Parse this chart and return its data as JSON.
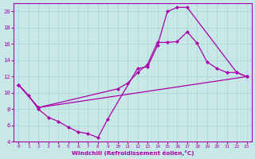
{
  "xlabel": "Windchill (Refroidissement éolien,°C)",
  "bg_color": "#c8e8e8",
  "grid_color": "#a8d4d4",
  "line_color": "#aa00aa",
  "xlim": [
    -0.5,
    23.5
  ],
  "ylim": [
    4,
    21
  ],
  "xticks": [
    0,
    1,
    2,
    3,
    4,
    5,
    6,
    7,
    8,
    9,
    10,
    11,
    12,
    13,
    14,
    15,
    16,
    17,
    18,
    19,
    20,
    21,
    22,
    23
  ],
  "yticks": [
    4,
    6,
    8,
    10,
    12,
    14,
    16,
    18,
    20
  ],
  "line1_x": [
    0,
    1,
    2,
    3,
    4,
    5,
    6,
    7,
    8,
    9,
    12,
    13,
    14,
    15,
    16,
    17,
    22,
    23
  ],
  "line1_y": [
    11,
    9.7,
    8,
    7,
    6.5,
    5.8,
    5.2,
    5.0,
    4.5,
    6.8,
    13.0,
    13.2,
    15.8,
    20.0,
    20.5,
    20.5,
    12.5,
    12.0
  ],
  "line2_x": [
    0,
    2,
    23
  ],
  "line2_y": [
    11,
    8.2,
    12.0
  ],
  "line3_x": [
    0,
    2,
    10,
    11,
    12,
    13,
    14,
    15,
    16,
    17,
    18,
    19,
    20,
    21,
    22,
    23
  ],
  "line3_y": [
    11,
    8.2,
    10.5,
    11.2,
    12.5,
    13.5,
    16.2,
    16.2,
    16.3,
    17.5,
    16.1,
    13.8,
    13.0,
    12.5,
    12.5,
    12.0
  ]
}
